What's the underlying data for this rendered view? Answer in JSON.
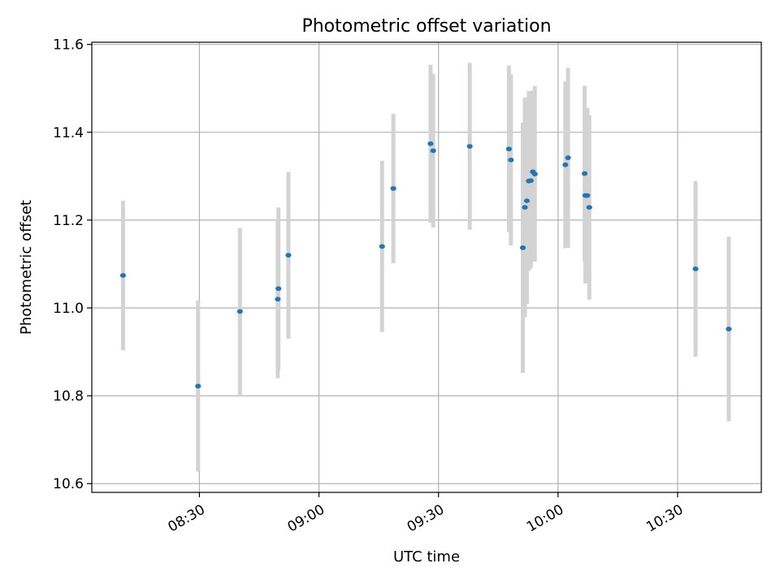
{
  "chart_data": {
    "type": "scatter",
    "title": "Photometric offset variation",
    "xlabel": "UTC time",
    "ylabel": "Photometric offset",
    "xlim": [
      "08:03",
      "10:51"
    ],
    "ylim": [
      10.58,
      11.605
    ],
    "x_ticks": [
      "08:30",
      "09:00",
      "09:30",
      "10:00",
      "10:30"
    ],
    "y_ticks": [
      10.6,
      10.8,
      11.0,
      11.2,
      11.4,
      11.6
    ],
    "y_tick_labels": [
      "10.6",
      "10.8",
      "11.0",
      "11.2",
      "11.4",
      "11.6"
    ],
    "grid": true,
    "colors": {
      "point": "#1f77b4",
      "error_bar": "#d3d3d3",
      "grid": "#b0b0b0"
    },
    "points": [
      {
        "t": "08:10:50",
        "y": 11.074,
        "err": 0.17
      },
      {
        "t": "08:29:40",
        "y": 10.822,
        "err": 0.195
      },
      {
        "t": "08:40:10",
        "y": 10.992,
        "err": 0.19
      },
      {
        "t": "08:49:40",
        "y": 11.02,
        "err": 0.18
      },
      {
        "t": "08:49:50",
        "y": 11.044,
        "err": 0.185
      },
      {
        "t": "08:52:20",
        "y": 11.12,
        "err": 0.19
      },
      {
        "t": "09:15:50",
        "y": 11.14,
        "err": 0.195
      },
      {
        "t": "09:18:40",
        "y": 11.272,
        "err": 0.17
      },
      {
        "t": "09:28:00",
        "y": 11.374,
        "err": 0.18
      },
      {
        "t": "09:28:40",
        "y": 11.358,
        "err": 0.175
      },
      {
        "t": "09:37:50",
        "y": 11.368,
        "err": 0.19
      },
      {
        "t": "09:47:40",
        "y": 11.362,
        "err": 0.19
      },
      {
        "t": "09:48:10",
        "y": 11.337,
        "err": 0.195
      },
      {
        "t": "09:51:10",
        "y": 11.137,
        "err": 0.285
      },
      {
        "t": "09:51:40",
        "y": 11.229,
        "err": 0.25
      },
      {
        "t": "09:52:10",
        "y": 11.244,
        "err": 0.235
      },
      {
        "t": "09:52:40",
        "y": 11.289,
        "err": 0.205
      },
      {
        "t": "09:53:10",
        "y": 11.29,
        "err": 0.2
      },
      {
        "t": "09:53:40",
        "y": 11.31,
        "err": 0.185
      },
      {
        "t": "09:54:10",
        "y": 11.305,
        "err": 0.2
      },
      {
        "t": "10:01:50",
        "y": 11.326,
        "err": 0.19
      },
      {
        "t": "10:02:30",
        "y": 11.342,
        "err": 0.205
      },
      {
        "t": "10:06:40",
        "y": 11.306,
        "err": 0.2
      },
      {
        "t": "10:06:50",
        "y": 11.256,
        "err": 0.2
      },
      {
        "t": "10:07:20",
        "y": 11.256,
        "err": 0.2
      },
      {
        "t": "10:07:50",
        "y": 11.229,
        "err": 0.21
      },
      {
        "t": "10:34:30",
        "y": 11.089,
        "err": 0.2
      },
      {
        "t": "10:42:50",
        "y": 10.952,
        "err": 0.21
      }
    ]
  }
}
